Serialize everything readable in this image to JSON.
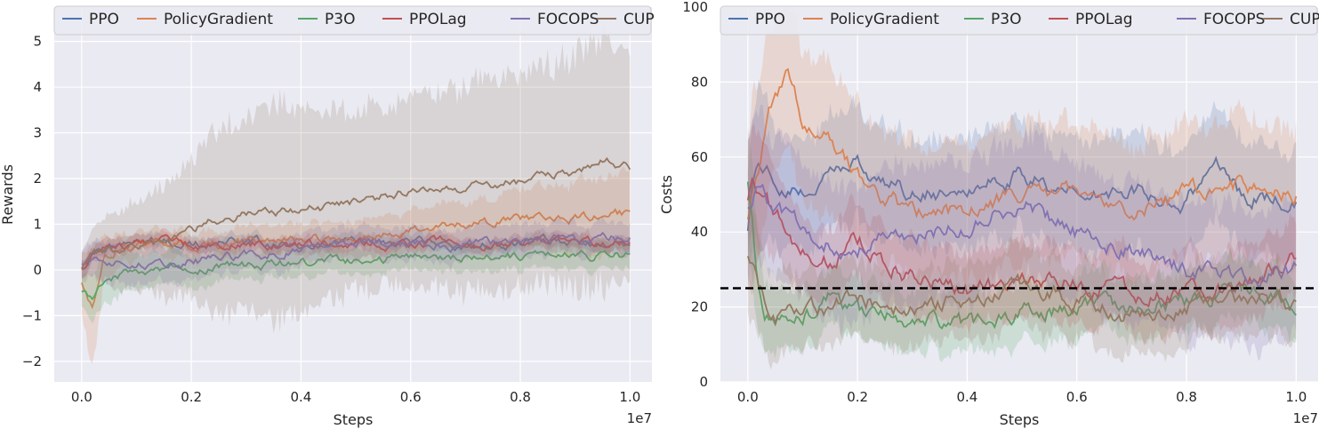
{
  "chart_data": [
    {
      "type": "line",
      "xlabel": "Steps",
      "ylabel": "Rewards",
      "x_offset_label": "1e7",
      "xlim": [
        -0.05,
        1.04
      ],
      "ylim": [
        -2.45,
        5.75
      ],
      "x_ticks": [
        0.0,
        0.2,
        0.4,
        0.6,
        0.8,
        1.0
      ],
      "x_tick_labels": [
        "0.0",
        "0.2",
        "0.4",
        "0.6",
        "0.8",
        "1.0"
      ],
      "y_ticks": [
        -2,
        -1,
        0,
        1,
        2,
        3,
        4,
        5
      ],
      "y_tick_labels": [
        "−2",
        "−1",
        "0",
        "1",
        "2",
        "3",
        "4",
        "5"
      ],
      "grid": true,
      "legend_position": "top",
      "series": [
        {
          "name": "PPO",
          "color": "#4c72b0",
          "x": [
            0,
            0.02,
            0.05,
            0.1,
            0.15,
            0.2,
            0.3,
            0.4,
            0.5,
            0.6,
            0.7,
            0.8,
            0.9,
            1.0
          ],
          "y": [
            0.0,
            0.4,
            0.55,
            0.6,
            0.6,
            0.6,
            0.6,
            0.55,
            0.6,
            0.6,
            0.55,
            0.6,
            0.6,
            0.55
          ],
          "band": [
            0.2,
            0.15,
            0.15,
            0.15,
            0.15,
            0.15,
            0.15,
            0.15,
            0.15,
            0.15,
            0.15,
            0.15,
            0.15,
            0.15
          ]
        },
        {
          "name": "PolicyGradient",
          "color": "#dd8452",
          "x": [
            0,
            0.01,
            0.02,
            0.04,
            0.08,
            0.15,
            0.3,
            0.4,
            0.5,
            0.6,
            0.7,
            0.8,
            0.9,
            1.0
          ],
          "y": [
            -0.3,
            -0.6,
            -0.8,
            0.3,
            0.55,
            0.55,
            0.6,
            0.65,
            0.75,
            0.85,
            1.0,
            1.1,
            1.15,
            1.25
          ],
          "band": [
            0.7,
            1.0,
            1.3,
            0.5,
            0.3,
            0.3,
            0.3,
            0.35,
            0.4,
            0.45,
            0.5,
            0.6,
            0.8,
            0.9
          ]
        },
        {
          "name": "P3O",
          "color": "#55a868",
          "x": [
            0,
            0.02,
            0.05,
            0.1,
            0.15,
            0.2,
            0.3,
            0.4,
            0.5,
            0.6,
            0.7,
            0.8,
            0.9,
            1.0
          ],
          "y": [
            -0.5,
            -0.55,
            -0.15,
            -0.1,
            0.0,
            0.05,
            0.1,
            0.15,
            0.2,
            0.25,
            0.25,
            0.3,
            0.3,
            0.3
          ],
          "band": [
            0.3,
            0.5,
            0.5,
            0.4,
            0.35,
            0.35,
            0.3,
            0.3,
            0.3,
            0.3,
            0.3,
            0.3,
            0.3,
            0.3
          ]
        },
        {
          "name": "PPOLag",
          "color": "#c44e52",
          "x": [
            0,
            0.02,
            0.05,
            0.1,
            0.15,
            0.2,
            0.3,
            0.4,
            0.5,
            0.6,
            0.7,
            0.8,
            0.9,
            1.0
          ],
          "y": [
            0.0,
            0.35,
            0.5,
            0.6,
            0.6,
            0.55,
            0.55,
            0.55,
            0.55,
            0.6,
            0.55,
            0.6,
            0.6,
            0.6
          ],
          "band": [
            0.2,
            0.2,
            0.2,
            0.15,
            0.15,
            0.15,
            0.15,
            0.15,
            0.15,
            0.15,
            0.15,
            0.15,
            0.15,
            0.15
          ]
        },
        {
          "name": "FOCOPS",
          "color": "#8172b3",
          "x": [
            0,
            0.02,
            0.05,
            0.1,
            0.15,
            0.2,
            0.3,
            0.4,
            0.5,
            0.6,
            0.7,
            0.8,
            0.9,
            1.0
          ],
          "y": [
            0.1,
            0.2,
            0.2,
            0.2,
            0.15,
            0.2,
            0.3,
            0.45,
            0.55,
            0.55,
            0.55,
            0.6,
            0.7,
            0.7
          ],
          "band": [
            0.3,
            0.4,
            0.45,
            0.4,
            0.4,
            0.4,
            0.35,
            0.35,
            0.35,
            0.35,
            0.35,
            0.35,
            0.35,
            0.35
          ]
        },
        {
          "name": "CUP",
          "color": "#937860",
          "x": [
            0,
            0.02,
            0.05,
            0.1,
            0.15,
            0.2,
            0.25,
            0.3,
            0.35,
            0.4,
            0.5,
            0.6,
            0.7,
            0.8,
            0.9,
            0.95,
            1.0
          ],
          "y": [
            0.0,
            0.3,
            0.45,
            0.55,
            0.6,
            0.85,
            1.1,
            1.25,
            1.3,
            1.3,
            1.45,
            1.75,
            1.8,
            1.95,
            2.15,
            2.4,
            2.25
          ],
          "band": [
            0.3,
            0.5,
            0.8,
            1.0,
            1.2,
            1.6,
            2.0,
            2.2,
            2.4,
            2.2,
            2.0,
            2.0,
            2.2,
            2.3,
            2.5,
            2.7,
            2.5
          ]
        }
      ]
    },
    {
      "type": "line",
      "xlabel": "Steps",
      "ylabel": "Costs",
      "x_offset_label": "1e7",
      "xlim": [
        -0.05,
        1.04
      ],
      "ylim": [
        0,
        100
      ],
      "x_ticks": [
        0.0,
        0.2,
        0.4,
        0.6,
        0.8,
        1.0
      ],
      "x_tick_labels": [
        "0.0",
        "0.2",
        "0.4",
        "0.6",
        "0.8",
        "1.0"
      ],
      "y_ticks": [
        0,
        20,
        40,
        60,
        80,
        100
      ],
      "y_tick_labels": [
        "0",
        "20",
        "40",
        "60",
        "80",
        "100"
      ],
      "grid": true,
      "legend_position": "top",
      "threshold": 25,
      "series": [
        {
          "name": "PPO",
          "color": "#4c72b0",
          "x": [
            0,
            0.01,
            0.02,
            0.05,
            0.1,
            0.15,
            0.2,
            0.3,
            0.4,
            0.5,
            0.6,
            0.7,
            0.8,
            0.85,
            0.9,
            1.0
          ],
          "y": [
            42,
            55,
            60,
            55,
            50,
            55,
            58,
            50,
            52,
            55,
            50,
            52,
            48,
            60,
            50,
            48
          ],
          "band": [
            15,
            20,
            20,
            15,
            15,
            15,
            15,
            15,
            15,
            15,
            15,
            15,
            15,
            15,
            15,
            15
          ]
        },
        {
          "name": "PolicyGradient",
          "color": "#dd8452",
          "x": [
            0,
            0.01,
            0.02,
            0.03,
            0.05,
            0.07,
            0.1,
            0.15,
            0.2,
            0.3,
            0.4,
            0.5,
            0.6,
            0.7,
            0.8,
            0.9,
            1.0
          ],
          "y": [
            45,
            55,
            60,
            68,
            78,
            82,
            70,
            65,
            55,
            45,
            45,
            50,
            52,
            45,
            50,
            52,
            50
          ],
          "band": [
            20,
            25,
            25,
            25,
            20,
            20,
            20,
            20,
            18,
            18,
            18,
            18,
            18,
            18,
            18,
            18,
            18
          ]
        },
        {
          "name": "P3O",
          "color": "#55a868",
          "x": [
            0,
            0.01,
            0.02,
            0.03,
            0.05,
            0.1,
            0.15,
            0.2,
            0.3,
            0.4,
            0.5,
            0.6,
            0.7,
            0.8,
            0.9,
            1.0
          ],
          "y": [
            55,
            40,
            25,
            20,
            14,
            18,
            22,
            18,
            17,
            15,
            18,
            20,
            20,
            22,
            25,
            22
          ],
          "band": [
            15,
            15,
            12,
            10,
            8,
            8,
            8,
            8,
            8,
            8,
            8,
            8,
            8,
            8,
            8,
            8
          ]
        },
        {
          "name": "PPOLag",
          "color": "#c44e52",
          "x": [
            0,
            0.01,
            0.02,
            0.05,
            0.1,
            0.15,
            0.2,
            0.3,
            0.4,
            0.5,
            0.6,
            0.7,
            0.8,
            0.9,
            1.0
          ],
          "y": [
            50,
            55,
            52,
            45,
            35,
            32,
            38,
            28,
            25,
            26,
            27,
            24,
            24,
            25,
            35
          ],
          "band": [
            15,
            15,
            15,
            12,
            10,
            10,
            10,
            10,
            10,
            10,
            10,
            10,
            10,
            10,
            10
          ]
        },
        {
          "name": "FOCOPS",
          "color": "#8172b3",
          "x": [
            0,
            0.02,
            0.05,
            0.1,
            0.15,
            0.2,
            0.3,
            0.4,
            0.5,
            0.6,
            0.7,
            0.8,
            0.9,
            1.0
          ],
          "y": [
            48,
            52,
            45,
            40,
            38,
            36,
            40,
            42,
            48,
            40,
            35,
            30,
            28,
            30
          ],
          "band": [
            20,
            20,
            18,
            18,
            18,
            18,
            18,
            18,
            18,
            18,
            18,
            18,
            18,
            18
          ]
        },
        {
          "name": "CUP",
          "color": "#937860",
          "x": [
            0,
            0.02,
            0.05,
            0.1,
            0.15,
            0.2,
            0.3,
            0.4,
            0.5,
            0.6,
            0.7,
            0.8,
            0.9,
            1.0
          ],
          "y": [
            35,
            25,
            18,
            17,
            20,
            22,
            20,
            22,
            25,
            22,
            18,
            20,
            22,
            20
          ],
          "band": [
            15,
            14,
            12,
            10,
            10,
            10,
            10,
            10,
            10,
            10,
            10,
            10,
            10,
            10
          ]
        }
      ]
    }
  ]
}
